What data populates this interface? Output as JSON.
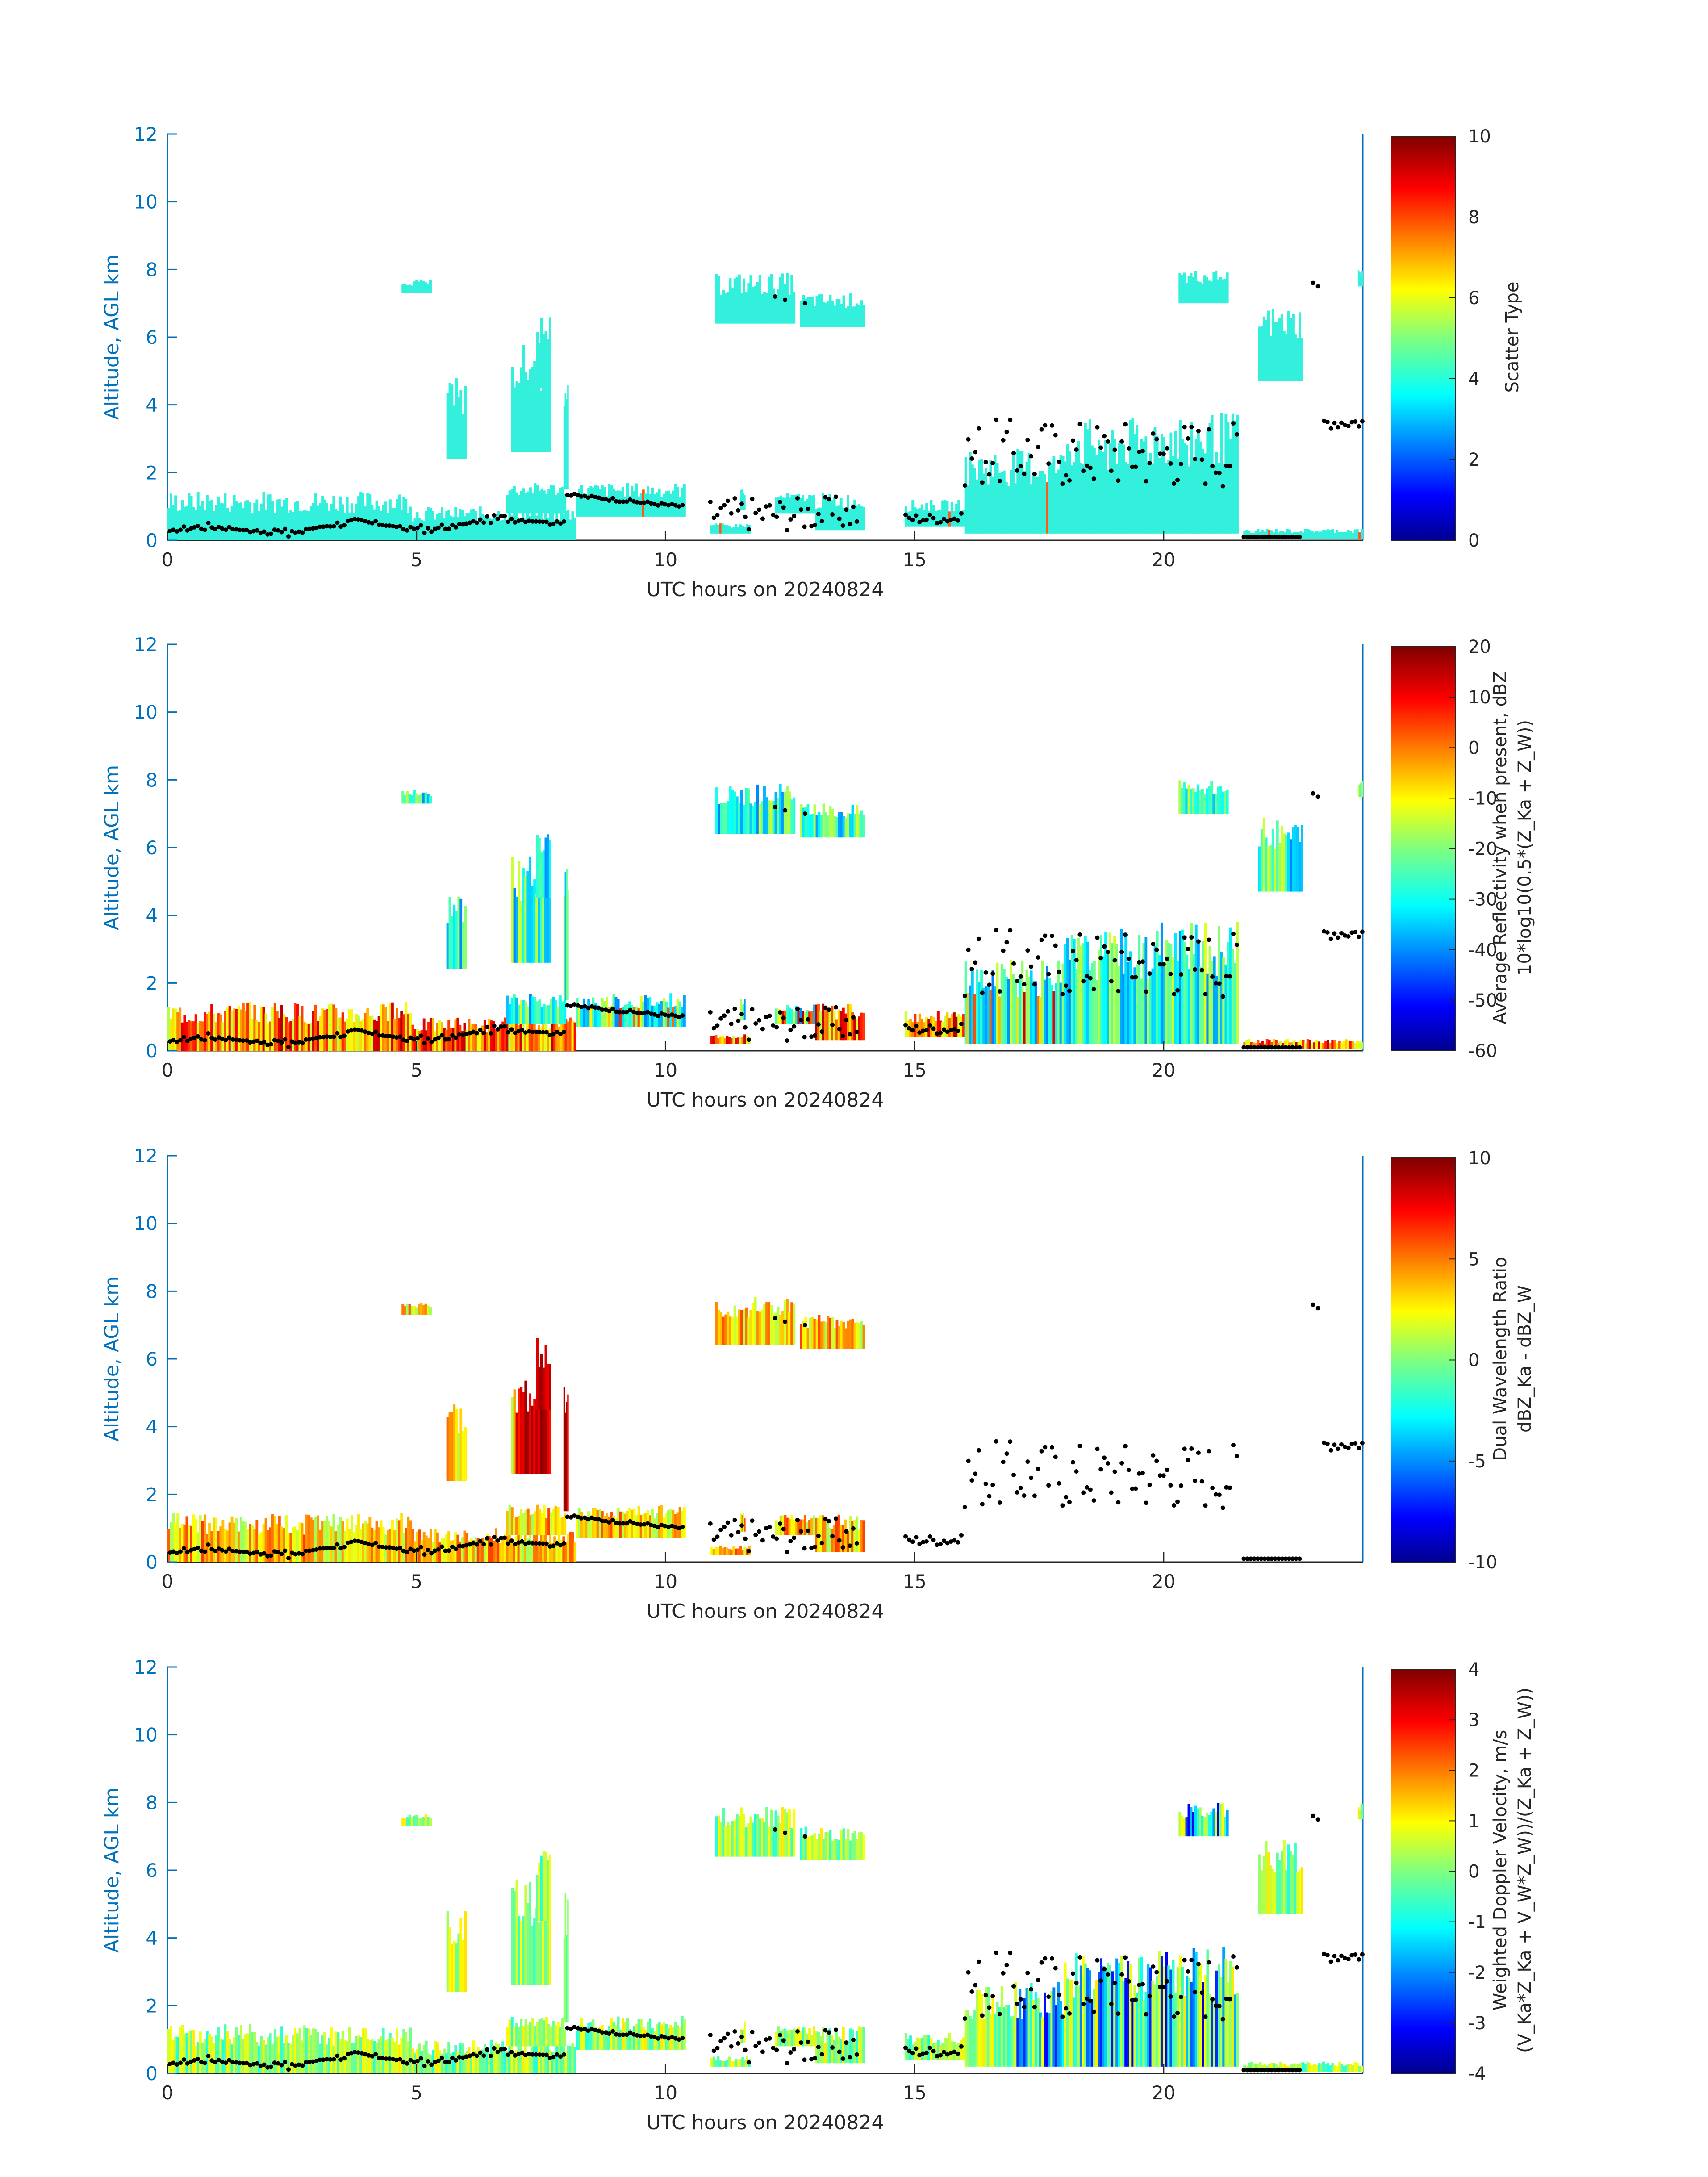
{
  "chart_data": [
    {
      "type": "heatmap",
      "panel": 1,
      "ylabel": "Altitude, AGL km",
      "xlabel": "UTC hours on 20240824",
      "x_ticks": [
        "0",
        "5",
        "10",
        "15",
        "20"
      ],
      "y_ticks": [
        "0",
        "2",
        "4",
        "6",
        "8",
        "10",
        "12"
      ],
      "xlim": [
        0,
        24
      ],
      "ylim": [
        0,
        12
      ],
      "colormap": "jet",
      "colorbar": {
        "label_lines": [
          "Scatter Type"
        ],
        "range": [
          0,
          10
        ],
        "ticks": [
          "0",
          "2",
          "4",
          "6",
          "8",
          "10"
        ]
      }
    },
    {
      "type": "heatmap",
      "panel": 2,
      "ylabel": "Altitude, AGL km",
      "xlabel": "UTC hours on 20240824",
      "x_ticks": [
        "0",
        "5",
        "10",
        "15",
        "20"
      ],
      "y_ticks": [
        "0",
        "2",
        "4",
        "6",
        "8",
        "10",
        "12"
      ],
      "xlim": [
        0,
        24
      ],
      "ylim": [
        0,
        12
      ],
      "colormap": "jet",
      "colorbar": {
        "label_lines": [
          "Average Reflectivity when present, dBZ",
          "10*log10(0.5*(Z_Ka + Z_W))"
        ],
        "range": [
          -60,
          20
        ],
        "ticks": [
          "-60",
          "-50",
          "-40",
          "-30",
          "-20",
          "-10",
          "0",
          "10",
          "20"
        ]
      }
    },
    {
      "type": "heatmap",
      "panel": 3,
      "ylabel": "Altitude, AGL km",
      "xlabel": "UTC hours on 20240824",
      "x_ticks": [
        "0",
        "5",
        "10",
        "15",
        "20"
      ],
      "y_ticks": [
        "0",
        "2",
        "4",
        "6",
        "8",
        "10",
        "12"
      ],
      "xlim": [
        0,
        24
      ],
      "ylim": [
        0,
        12
      ],
      "colormap": "jet",
      "colorbar": {
        "label_lines": [
          "Dual Wavelength Ratio",
          "dBZ_Ka - dBZ_W"
        ],
        "range": [
          -10,
          10
        ],
        "ticks": [
          "-10",
          "-5",
          "0",
          "5",
          "10"
        ]
      }
    },
    {
      "type": "heatmap",
      "panel": 4,
      "ylabel": "Altitude, AGL km",
      "xlabel": "UTC hours on 20240824",
      "x_ticks": [
        "0",
        "5",
        "10",
        "15",
        "20"
      ],
      "y_ticks": [
        "0",
        "2",
        "4",
        "6",
        "8",
        "10",
        "12"
      ],
      "xlim": [
        0,
        24
      ],
      "ylim": [
        0,
        12
      ],
      "colormap": "jet",
      "colorbar": {
        "label_lines": [
          "Weighted Doppler Velocity, m/s",
          "(V_Ka*Z_Ka + V_W*Z_W))/(Z_Ka + Z_W))"
        ],
        "range": [
          -4,
          4
        ],
        "ticks": [
          "-4",
          "-3",
          "-2",
          "-1",
          "0",
          "1",
          "2",
          "3",
          "4"
        ]
      }
    }
  ],
  "colors": {
    "axis": "#0072bd",
    "text": "#262626",
    "dots": "#000000",
    "field_primary": "#33f0dc",
    "field_orange": "#ff5a14"
  }
}
